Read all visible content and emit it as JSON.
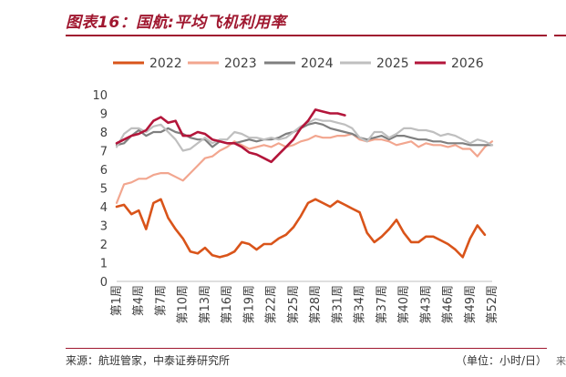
{
  "header": {
    "title": "图表16：国航:平均飞机利用率"
  },
  "footer": {
    "source": "来源：航班管家，中泰证券研究所",
    "unit": "（单位：小时/日）",
    "edge_mark": "来"
  },
  "colors": {
    "accent": "#a01830"
  },
  "chart_data": {
    "type": "line",
    "title": "",
    "xlabel": "",
    "ylabel": "",
    "ylim": [
      0,
      10
    ],
    "yticks": [
      0,
      1,
      2,
      3,
      4,
      5,
      6,
      7,
      8,
      9,
      10
    ],
    "x_categories": [
      "第1周",
      "第4周",
      "第7周",
      "第10周",
      "第13周",
      "第16周",
      "第19周",
      "第22周",
      "第25周",
      "第28周",
      "第31周",
      "第34周",
      "第37周",
      "第40周",
      "第43周",
      "第46周",
      "第49周",
      "第52周"
    ],
    "x_category_weeks": [
      1,
      4,
      7,
      10,
      13,
      16,
      19,
      22,
      25,
      28,
      31,
      34,
      37,
      40,
      43,
      46,
      49,
      52
    ],
    "x_range": [
      1,
      52
    ],
    "legend_position": "top",
    "series": [
      {
        "name": "2022",
        "color": "#d9541a",
        "x": [
          1,
          2,
          3,
          4,
          5,
          6,
          7,
          8,
          9,
          10,
          11,
          12,
          13,
          14,
          15,
          16,
          17,
          18,
          19,
          20,
          21,
          22,
          23,
          24,
          25,
          26,
          27,
          28,
          29,
          30,
          31,
          32,
          33,
          34,
          35,
          36,
          37,
          38,
          39,
          40,
          41,
          42,
          43,
          44,
          45,
          46,
          47,
          48,
          49,
          50,
          51
        ],
        "y": [
          4.0,
          4.1,
          3.6,
          3.8,
          2.8,
          4.2,
          4.4,
          3.4,
          2.8,
          2.3,
          1.6,
          1.5,
          1.8,
          1.4,
          1.3,
          1.4,
          1.6,
          2.1,
          2.0,
          1.7,
          2.0,
          2.0,
          2.3,
          2.5,
          2.9,
          3.5,
          4.2,
          4.4,
          4.2,
          4.0,
          4.3,
          4.1,
          3.9,
          3.7,
          2.6,
          2.1,
          2.4,
          2.8,
          3.3,
          2.6,
          2.1,
          2.1,
          2.4,
          2.4,
          2.2,
          2.0,
          1.7,
          1.3,
          2.3,
          3.0,
          2.5
        ]
      },
      {
        "name": "2023",
        "color": "#f2a68f",
        "x": [
          1,
          2,
          3,
          4,
          5,
          6,
          7,
          8,
          9,
          10,
          11,
          12,
          13,
          14,
          15,
          16,
          17,
          18,
          19,
          20,
          21,
          22,
          23,
          24,
          25,
          26,
          27,
          28,
          29,
          30,
          31,
          32,
          33,
          34,
          35,
          36,
          37,
          38,
          39,
          40,
          41,
          42,
          43,
          44,
          45,
          46,
          47,
          48,
          49,
          50,
          51,
          52
        ],
        "y": [
          4.2,
          5.2,
          5.3,
          5.5,
          5.5,
          5.7,
          5.8,
          5.8,
          5.6,
          5.4,
          5.8,
          6.2,
          6.6,
          6.7,
          7.0,
          7.2,
          7.5,
          7.3,
          7.1,
          7.2,
          7.3,
          7.2,
          7.4,
          7.2,
          7.3,
          7.5,
          7.6,
          7.8,
          7.7,
          7.7,
          7.8,
          7.8,
          7.9,
          7.6,
          7.5,
          7.6,
          7.6,
          7.5,
          7.3,
          7.4,
          7.5,
          7.2,
          7.4,
          7.3,
          7.3,
          7.2,
          7.3,
          7.1,
          7.1,
          6.7,
          7.2,
          7.5
        ]
      },
      {
        "name": "2024",
        "color": "#7f7f7f",
        "x": [
          1,
          2,
          3,
          4,
          5,
          6,
          7,
          8,
          9,
          10,
          11,
          12,
          13,
          14,
          15,
          16,
          17,
          18,
          19,
          20,
          21,
          22,
          23,
          24,
          25,
          26,
          27,
          28,
          29,
          30,
          31,
          32,
          33,
          34,
          35,
          36,
          37,
          38,
          39,
          40,
          41,
          42,
          43,
          44,
          45,
          46,
          47,
          48,
          49,
          50,
          51,
          52
        ],
        "y": [
          7.3,
          7.4,
          7.8,
          8.1,
          7.8,
          8.0,
          8.0,
          8.2,
          8.0,
          7.9,
          7.7,
          7.6,
          7.6,
          7.2,
          7.5,
          7.4,
          7.4,
          7.5,
          7.6,
          7.5,
          7.6,
          7.6,
          7.7,
          7.9,
          8.0,
          8.2,
          8.4,
          8.5,
          8.4,
          8.2,
          8.1,
          8.0,
          7.9,
          7.7,
          7.6,
          7.7,
          7.8,
          7.6,
          7.8,
          7.8,
          7.7,
          7.6,
          7.6,
          7.5,
          7.5,
          7.4,
          7.4,
          7.4,
          7.3,
          7.3,
          7.3,
          7.3
        ]
      },
      {
        "name": "2025",
        "color": "#bfbfbf",
        "x": [
          1,
          2,
          3,
          4,
          5,
          6,
          7,
          8,
          9,
          10,
          11,
          12,
          13,
          14,
          15,
          16,
          17,
          18,
          19,
          20,
          21,
          22,
          23,
          24,
          25,
          26,
          27,
          28,
          29,
          30,
          31,
          32,
          33,
          34,
          35,
          36,
          37,
          38,
          39,
          40,
          41,
          42,
          43,
          44,
          45,
          46,
          47,
          48,
          49,
          50,
          51,
          52
        ],
        "y": [
          7.2,
          7.9,
          8.2,
          8.2,
          8.0,
          8.3,
          8.4,
          8.0,
          7.6,
          7.0,
          7.1,
          7.4,
          7.7,
          7.4,
          7.6,
          7.6,
          8.0,
          7.9,
          7.7,
          7.7,
          7.6,
          7.7,
          7.6,
          7.7,
          8.0,
          8.3,
          8.5,
          8.7,
          8.6,
          8.6,
          8.5,
          8.4,
          8.2,
          7.7,
          7.5,
          8.0,
          8.0,
          7.7,
          7.9,
          8.2,
          8.2,
          8.1,
          8.1,
          8.0,
          7.8,
          7.9,
          7.8,
          7.6,
          7.4,
          7.6,
          7.5,
          7.3
        ]
      },
      {
        "name": "2026",
        "color": "#b3153a",
        "x": [
          1,
          2,
          3,
          4,
          5,
          6,
          7,
          8,
          9,
          10,
          11,
          12,
          13,
          14,
          15,
          16,
          17,
          18,
          19,
          20,
          21,
          22,
          23,
          24,
          25,
          26,
          27,
          28,
          29,
          30,
          31,
          32
        ],
        "y": [
          7.4,
          7.6,
          7.8,
          7.9,
          8.1,
          8.6,
          8.8,
          8.5,
          8.6,
          7.8,
          7.8,
          8.0,
          7.9,
          7.6,
          7.5,
          7.4,
          7.4,
          7.2,
          6.9,
          6.8,
          6.6,
          6.4,
          6.8,
          7.2,
          7.6,
          8.2,
          8.6,
          9.2,
          9.1,
          9.0,
          9.0,
          8.9
        ]
      }
    ]
  }
}
